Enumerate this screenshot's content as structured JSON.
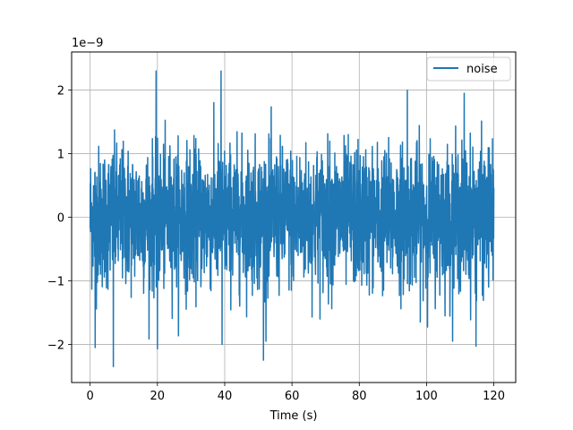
{
  "chart_data": {
    "type": "line",
    "title": "",
    "xlabel": "Time (s)",
    "ylabel": "",
    "y_multiplier_label": "1e−9",
    "xlim": [
      -5.5,
      126.5
    ],
    "ylim": [
      -2.6,
      2.6
    ],
    "x_ticks": [
      0,
      20,
      40,
      60,
      80,
      100,
      120
    ],
    "x_tick_labels": [
      "0",
      "20",
      "40",
      "60",
      "80",
      "100",
      "120"
    ],
    "y_ticks": [
      2,
      1,
      0,
      -1,
      -2
    ],
    "y_tick_labels": [
      "2",
      "1",
      "0",
      "−1",
      "−2"
    ],
    "grid": true,
    "legend_position": "top-right",
    "series": [
      {
        "name": "noise",
        "color": "#1f77b4",
        "sampling": {
          "x_start": 0,
          "x_end": 120,
          "count": 2400
        },
        "amplitude_std": 0.55,
        "peaks": [
          {
            "x": 6.9,
            "y": -2.35
          },
          {
            "x": 19.6,
            "y": 2.3
          },
          {
            "x": 38.9,
            "y": 2.3
          },
          {
            "x": 51.5,
            "y": -2.25
          },
          {
            "x": 94.3,
            "y": 2.0
          },
          {
            "x": 1.5,
            "y": -2.05
          },
          {
            "x": 20.0,
            "y": -2.07
          },
          {
            "x": 39.2,
            "y": -2.0
          },
          {
            "x": 114.7,
            "y": -2.03
          },
          {
            "x": 111.2,
            "y": 1.95
          }
        ]
      }
    ]
  }
}
